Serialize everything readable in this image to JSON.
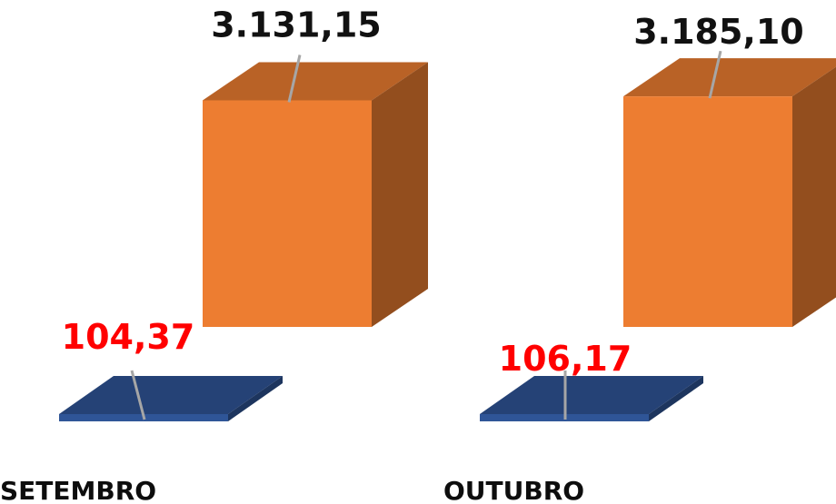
{
  "chart_data": {
    "type": "bar",
    "style": "3d-column",
    "categories": [
      "SETEMBRO",
      "OUTUBRO"
    ],
    "series": [
      {
        "color": "#ed7d31",
        "label_color": "#111111",
        "values": [
          3131.15,
          3185.1
        ],
        "labels": [
          "3.131,15",
          "3.185,10"
        ]
      },
      {
        "color": "#2f5597",
        "label_color": "#ff0000",
        "values": [
          104.37,
          106.17
        ],
        "labels": [
          "104,37",
          "106,17"
        ]
      }
    ],
    "title": "",
    "xlabel": "",
    "ylabel": "",
    "ylim": [
      0,
      3600
    ],
    "legend": "none",
    "grid": false
  }
}
